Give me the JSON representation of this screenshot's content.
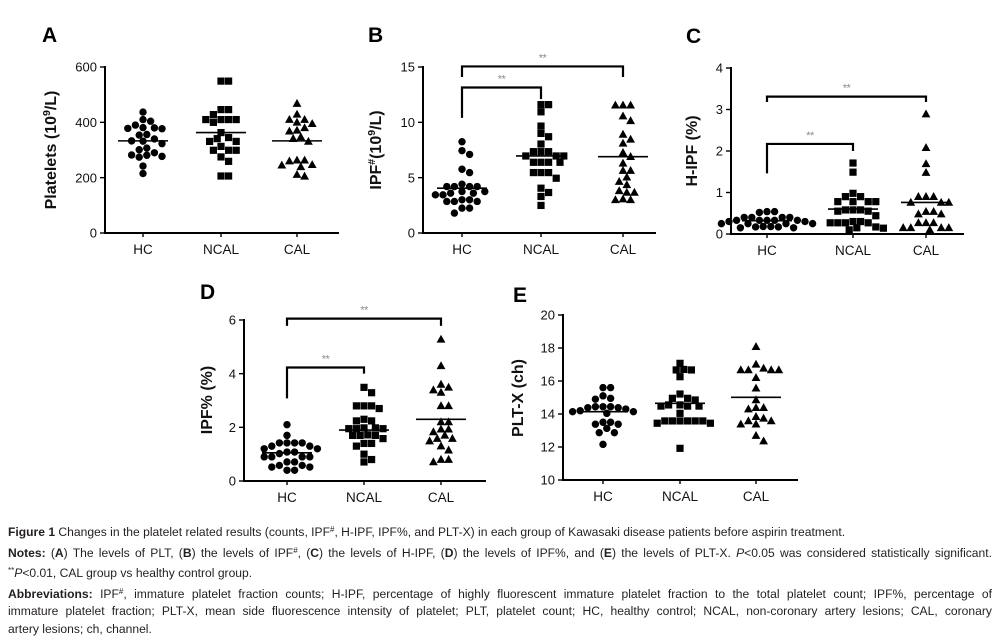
{
  "chart_data": [
    {
      "panel": "A",
      "type": "scatter",
      "title": "",
      "xlabel": "",
      "ylabel": [
        {
          "t": "Platelets (10"
        },
        {
          "t": "9",
          "sup": true
        },
        {
          "t": "/L)"
        }
      ],
      "categories": [
        "HC",
        "NCAL",
        "CAL"
      ],
      "ylim": [
        0,
        600
      ],
      "yticks": [
        0,
        200,
        400,
        600
      ],
      "grid": false,
      "legend": "none",
      "series": [
        {
          "name": "HC",
          "marker": "circle",
          "mean": 333,
          "values": [
            437,
            410,
            404,
            390,
            381,
            380,
            378,
            377,
            356,
            354,
            340,
            333,
            332,
            323,
            307,
            301,
            290,
            282,
            281,
            277,
            274,
            242,
            215
          ]
        },
        {
          "name": "NCAL",
          "marker": "square",
          "mean": 363,
          "values": [
            549,
            549,
            446,
            446,
            428,
            410,
            410,
            410,
            410,
            400,
            363,
            345,
            341,
            331,
            331,
            313,
            299,
            299,
            299,
            275,
            259,
            206,
            206
          ]
        },
        {
          "name": "CAL",
          "marker": "triangle",
          "mean": 333,
          "values": [
            468,
            429,
            410,
            410,
            400,
            395,
            380,
            371,
            368,
            347,
            341,
            331,
            263,
            263,
            260,
            247,
            245,
            239,
            211,
            205
          ]
        }
      ],
      "significance": []
    },
    {
      "panel": "B",
      "type": "scatter",
      "title": "",
      "xlabel": "",
      "ylabel": [
        {
          "t": "IPF"
        },
        {
          "t": "#",
          "sup": true
        },
        {
          "t": "(10"
        },
        {
          "t": "9",
          "sup": true
        },
        {
          "t": "/L)"
        }
      ],
      "categories": [
        "HC",
        "NCAL",
        "CAL"
      ],
      "ylim": [
        0,
        15
      ],
      "yticks": [
        0,
        5,
        10,
        15
      ],
      "grid": false,
      "legend": "none",
      "series": [
        {
          "name": "HC",
          "marker": "circle",
          "mean": 4.05,
          "values": [
            8.25,
            7.44,
            7.1,
            5.76,
            5.46,
            4.41,
            4.2,
            4.2,
            4.2,
            4.2,
            3.75,
            3.75,
            3.6,
            3.6,
            3.45,
            3.45,
            3.0,
            3.0,
            2.85,
            2.85,
            2.85,
            2.25,
            2.25,
            1.8
          ]
        },
        {
          "name": "NCAL",
          "marker": "square",
          "mean": 6.96,
          "values": [
            11.6,
            11.6,
            10.95,
            9.66,
            9.0,
            8.7,
            8.04,
            7.35,
            7.35,
            7.35,
            6.96,
            6.96,
            6.96,
            6.39,
            6.39,
            6.39,
            6.39,
            5.46,
            5.46,
            5.46,
            4.95,
            4.05,
            3.66,
            3.3,
            2.49
          ]
        },
        {
          "name": "CAL",
          "marker": "triangle",
          "mean": 6.9,
          "values": [
            11.55,
            11.55,
            11.55,
            10.56,
            10.14,
            8.91,
            8.46,
            8.1,
            7.26,
            6.9,
            6.3,
            5.64,
            5.64,
            5.04,
            4.65,
            4.35,
            3.81,
            3.66,
            3.66,
            3.06,
            3.0,
            3.0
          ]
        }
      ],
      "significance": [
        {
          "from": "HC",
          "to": "NCAL",
          "y": 13.15,
          "left_end": 10.4,
          "right_end": 12.1,
          "label": "**"
        },
        {
          "from": "HC",
          "to": "CAL",
          "y": 15.05,
          "left_end": 14.1,
          "right_end": 14.1,
          "label": "**"
        }
      ]
    },
    {
      "panel": "C",
      "type": "scatter",
      "title": "",
      "xlabel": "",
      "ylabel": [
        {
          "t": "H-IPF (%)"
        }
      ],
      "categories": [
        "HC",
        "NCAL",
        "CAL"
      ],
      "ylim": [
        0,
        4
      ],
      "yticks": [
        0,
        1,
        2,
        3,
        4
      ],
      "grid": false,
      "legend": "none",
      "series": [
        {
          "name": "HC",
          "marker": "circle",
          "mean": 0.32,
          "values": [
            0.54,
            0.54,
            0.52,
            0.4,
            0.4,
            0.4,
            0.4,
            0.33,
            0.33,
            0.33,
            0.33,
            0.33,
            0.3,
            0.3,
            0.25,
            0.25,
            0.25,
            0.25,
            0.18,
            0.18,
            0.17,
            0.17,
            0.15,
            0.15
          ]
        },
        {
          "name": "NCAL",
          "marker": "square",
          "mean": 0.6,
          "values": [
            1.71,
            1.49,
            0.98,
            0.9,
            0.9,
            0.78,
            0.78,
            0.78,
            0.78,
            0.58,
            0.58,
            0.58,
            0.55,
            0.55,
            0.44,
            0.3,
            0.3,
            0.27,
            0.27,
            0.27,
            0.27,
            0.17,
            0.15,
            0.14,
            0.1
          ]
        },
        {
          "name": "CAL",
          "marker": "triangle",
          "mean": 0.76,
          "values": [
            2.89,
            2.08,
            1.69,
            1.48,
            0.9,
            0.9,
            0.9,
            0.76,
            0.76,
            0.76,
            0.54,
            0.54,
            0.48,
            0.48,
            0.27,
            0.27,
            0.27,
            0.15,
            0.15,
            0.15,
            0.15,
            0.1
          ]
        }
      ],
      "significance": [
        {
          "from": "HC",
          "to": "NCAL",
          "y": 2.17,
          "left_end": 1.46,
          "right_end": 2.0,
          "label": "**"
        },
        {
          "from": "HC",
          "to": "CAL",
          "y": 3.31,
          "left_end": 3.18,
          "right_end": 3.18,
          "label": "**"
        }
      ]
    },
    {
      "panel": "D",
      "type": "scatter",
      "title": "",
      "xlabel": "",
      "ylabel": [
        {
          "t": "IPF% (%)"
        }
      ],
      "categories": [
        "HC",
        "NCAL",
        "CAL"
      ],
      "ylim": [
        0,
        6
      ],
      "yticks": [
        0,
        2,
        4,
        6
      ],
      "grid": false,
      "legend": "none",
      "series": [
        {
          "name": "HC",
          "marker": "circle",
          "mean": 1.05,
          "values": [
            2.1,
            1.7,
            1.42,
            1.42,
            1.42,
            1.42,
            1.3,
            1.3,
            1.2,
            1.2,
            1.08,
            1.08,
            1.02,
            0.9,
            0.9,
            0.9,
            0.9,
            0.71,
            0.71,
            0.58,
            0.58,
            0.52,
            0.52,
            0.4,
            0.4
          ]
        },
        {
          "name": "NCAL",
          "marker": "square",
          "mean": 1.9,
          "values": [
            3.49,
            3.29,
            2.8,
            2.8,
            2.8,
            2.7,
            2.3,
            2.24,
            2.24,
            1.98,
            1.98,
            1.95,
            1.95,
            1.95,
            1.72,
            1.7,
            1.7,
            1.7,
            1.58,
            1.4,
            1.4,
            1.3,
            1.0,
            0.8,
            0.71
          ]
        },
        {
          "name": "CAL",
          "marker": "triangle",
          "mean": 2.3,
          "values": [
            5.28,
            4.29,
            3.6,
            3.49,
            3.39,
            3.3,
            2.8,
            2.8,
            2.2,
            2.2,
            1.93,
            1.93,
            1.83,
            1.7,
            1.58,
            1.58,
            1.49,
            1.3,
            1.15,
            0.8,
            0.8,
            0.71
          ]
        }
      ],
      "significance": [
        {
          "from": "HC",
          "to": "NCAL",
          "y": 4.23,
          "left_end": 3.08,
          "right_end": 4.0,
          "label": "**"
        },
        {
          "from": "HC",
          "to": "CAL",
          "y": 6.05,
          "left_end": 5.78,
          "right_end": 5.78,
          "label": "**"
        }
      ]
    },
    {
      "panel": "E",
      "type": "scatter",
      "title": "",
      "xlabel": "",
      "ylabel": [
        {
          "t": "PLT-X (ch)"
        }
      ],
      "categories": [
        "HC",
        "NCAL",
        "CAL"
      ],
      "ylim": [
        10,
        20
      ],
      "yticks": [
        10,
        12,
        14,
        16,
        18,
        20
      ],
      "grid": false,
      "legend": "none",
      "series": [
        {
          "name": "HC",
          "marker": "circle",
          "mean": 14.14,
          "values": [
            15.6,
            15.6,
            15.1,
            14.95,
            14.9,
            14.44,
            14.44,
            14.44,
            14.38,
            14.38,
            14.3,
            14.2,
            14.14,
            14.14,
            14.04,
            13.5,
            13.5,
            13.38,
            13.38,
            13.13,
            12.87,
            12.87,
            12.16
          ]
        },
        {
          "name": "NCAL",
          "marker": "square",
          "mean": 14.65,
          "values": [
            17.07,
            16.7,
            16.67,
            16.67,
            16.26,
            15.21,
            14.95,
            14.95,
            14.85,
            14.55,
            14.55,
            14.48,
            14.48,
            14.48,
            14.04,
            13.58,
            13.58,
            13.58,
            13.58,
            13.58,
            13.58,
            13.44,
            13.44,
            11.92
          ]
        },
        {
          "name": "CAL",
          "marker": "triangle",
          "mean": 15.01,
          "values": [
            18.08,
            17.01,
            16.77,
            16.67,
            16.67,
            16.67,
            16.67,
            16.2,
            15.56,
            14.85,
            14.38,
            14.38,
            14.3,
            13.84,
            13.74,
            13.58,
            13.58,
            13.38,
            13.38,
            12.69,
            12.36
          ]
        }
      ],
      "significance": []
    }
  ],
  "caption": {
    "lines": [
      [
        {
          "t": "Figure 1",
          "b": true
        },
        {
          "t": " Changes in the platelet related results (counts, IPF"
        },
        {
          "t": "#",
          "sup": true
        },
        {
          "t": ", H-IPF, IPF%, and PLT-X) in each group of Kawasaki disease patients before aspirin treatment."
        }
      ],
      [
        {
          "t": "Notes:",
          "b": true
        },
        {
          "t": " ("
        },
        {
          "t": "A",
          "b": true
        },
        {
          "t": ") The levels of PLT, ("
        },
        {
          "t": "B",
          "b": true
        },
        {
          "t": ") the levels of IPF"
        },
        {
          "t": "#",
          "sup": true
        },
        {
          "t": ", ("
        },
        {
          "t": "C",
          "b": true
        },
        {
          "t": ") the levels of H-IPF, ("
        },
        {
          "t": "D",
          "b": true
        },
        {
          "t": ") the levels of IPF%, and ("
        },
        {
          "t": "E",
          "b": true
        },
        {
          "t": ") the levels of PLT-X. "
        },
        {
          "t": "P",
          "i": true
        },
        {
          "t": "<0.05 was considered statistically significant."
        }
      ],
      [
        {
          "t": "**",
          "sup": true
        },
        {
          "t": "P",
          "i": true
        },
        {
          "t": "<0.01, CAL group vs healthy control group."
        }
      ],
      [
        {
          "t": "Abbreviations:",
          "b": true
        },
        {
          "t": " IPF"
        },
        {
          "t": "#",
          "sup": true
        },
        {
          "t": ", immature platelet fraction counts; H-IPF, percentage of highly fluorescent immature platelet fraction to the total platelet count; IPF%, percentage of"
        }
      ],
      [
        {
          "t": "immature platelet fraction; PLT-X, mean side fluorescence intensity of platelet; PLT, platelet count; HC, healthy control; NCAL, non-coronary artery lesions; CAL, coronary"
        }
      ],
      [
        {
          "t": "artery lesions; ch, channel."
        }
      ]
    ]
  }
}
